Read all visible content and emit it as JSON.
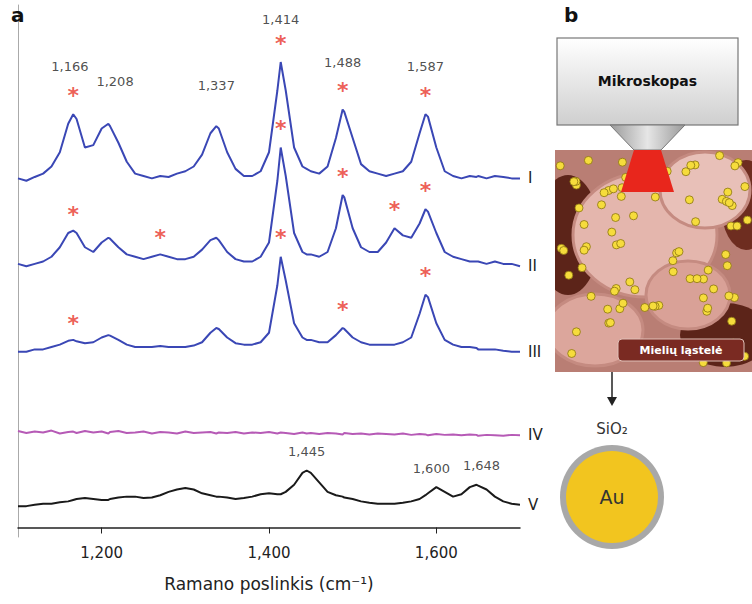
{
  "panel_labels": [
    "a",
    "b"
  ],
  "chart_data": {
    "type": "line",
    "x_label": "Ramano poslinkis (cm⁻¹)",
    "xlim": [
      1100,
      1700
    ],
    "xticks": [
      {
        "value": 1200,
        "label": "1,200"
      },
      {
        "value": 1400,
        "label": "1,400"
      },
      {
        "value": 1600,
        "label": "1,600"
      }
    ],
    "ylim": [
      -2,
      110
    ],
    "tick_labels": "x",
    "grid": false,
    "x": [
      1100,
      1110,
      1120,
      1130,
      1140,
      1150,
      1160,
      1166,
      1170,
      1180,
      1190,
      1200,
      1208,
      1210,
      1220,
      1230,
      1240,
      1250,
      1260,
      1270,
      1280,
      1290,
      1300,
      1310,
      1320,
      1330,
      1337,
      1340,
      1350,
      1360,
      1370,
      1380,
      1390,
      1400,
      1410,
      1414,
      1420,
      1430,
      1440,
      1445,
      1450,
      1460,
      1470,
      1480,
      1488,
      1490,
      1500,
      1510,
      1520,
      1530,
      1540,
      1550,
      1560,
      1570,
      1580,
      1587,
      1590,
      1600,
      1610,
      1620,
      1630,
      1640,
      1648,
      1650,
      1660,
      1670,
      1680,
      1690,
      1700
    ],
    "series": [
      {
        "name": "I",
        "color": "#3a47b5",
        "values": [
          73.5,
          73,
          73.8,
          74.5,
          76,
          79,
          85,
          87,
          86,
          80,
          80.5,
          84,
          85,
          84.5,
          81,
          77,
          74.5,
          74,
          73.5,
          74,
          73.8,
          74.5,
          75,
          76,
          78.5,
          83,
          84.5,
          84,
          79,
          75.5,
          74,
          74,
          75,
          79,
          92,
          98,
          92,
          80,
          76,
          75.5,
          75,
          74.5,
          76,
          82,
          88,
          87.5,
          82,
          76.5,
          75,
          74.5,
          74,
          74.5,
          75,
          77,
          83,
          87,
          86.5,
          80,
          75,
          74,
          73.5,
          74,
          73.8,
          74,
          73.5,
          74,
          73.8,
          73.5,
          73.5
        ],
        "stars": [
          [
            1166,
            91
          ],
          [
            1414,
            102
          ],
          [
            1488,
            92
          ],
          [
            1587,
            91
          ]
        ]
      },
      {
        "name": "II",
        "color": "#3a47b5",
        "values": [
          55.5,
          55,
          55.5,
          56,
          57,
          59,
          62,
          62.5,
          62,
          59,
          58,
          60,
          61,
          60.8,
          59,
          57.5,
          57,
          56.5,
          57,
          57.5,
          57,
          56.5,
          56.5,
          57,
          58.5,
          60.5,
          61,
          60.5,
          58,
          56.5,
          56,
          56,
          57,
          60,
          73,
          80,
          74,
          62,
          58,
          57.5,
          57.5,
          57,
          58,
          63,
          70,
          69.5,
          63,
          59,
          58,
          58,
          60,
          63,
          61.5,
          61,
          64,
          67,
          66.5,
          62,
          58,
          57,
          56.5,
          56,
          56,
          56,
          55.5,
          56,
          55.5,
          55.5,
          55
        ],
        "stars": [
          [
            1166,
            66
          ],
          [
            1270,
            61
          ],
          [
            1414,
            84
          ],
          [
            1488,
            74
          ],
          [
            1550,
            67
          ],
          [
            1587,
            71
          ]
        ]
      },
      {
        "name": "III",
        "color": "#3a47b5",
        "values": [
          37,
          37,
          37.5,
          37.5,
          38,
          38.5,
          39.3,
          39.5,
          39.2,
          38.8,
          39,
          40,
          40.5,
          40.4,
          39.5,
          38.5,
          38,
          38,
          38,
          38.2,
          38,
          38,
          38,
          38.3,
          39,
          41,
          42,
          41.8,
          40,
          38.8,
          38.5,
          38.5,
          39,
          41,
          51,
          57,
          52,
          43,
          40,
          39.5,
          39.5,
          39,
          39,
          40.5,
          42,
          41.8,
          40,
          39,
          38.5,
          38.5,
          38.5,
          38.5,
          39,
          40,
          45,
          49,
          48.5,
          43,
          39.5,
          38.5,
          38,
          38,
          37.8,
          37.5,
          37.5,
          37.5,
          37.2,
          37,
          37
        ],
        "stars": [
          [
            1166,
            43
          ],
          [
            1414,
            61
          ],
          [
            1488,
            46
          ],
          [
            1587,
            53
          ]
        ]
      },
      {
        "name": "IV",
        "color": "#b65ab6",
        "values": [
          20.3,
          19.9,
          20.2,
          20,
          20.4,
          19.8,
          20.1,
          20.2,
          19.9,
          20.3,
          20,
          20.2,
          19.8,
          20.1,
          20.3,
          19.9,
          20,
          20.2,
          19.8,
          20.1,
          20,
          19.8,
          20.2,
          19.9,
          20,
          20.1,
          19.8,
          20,
          19.9,
          20.1,
          19.8,
          20,
          19.9,
          20.1,
          19.8,
          20,
          19.9,
          19.7,
          20,
          19.8,
          19.9,
          19.7,
          19.9,
          19.8,
          19.6,
          19.9,
          19.7,
          19.8,
          19.6,
          19.8,
          19.7,
          19.6,
          19.8,
          19.5,
          19.7,
          19.6,
          19.4,
          19.7,
          19.5,
          19.6,
          19.4,
          19.6,
          19.5,
          19.3,
          19.5,
          19.4,
          19.3,
          19.5,
          19.4
        ],
        "stars": []
      },
      {
        "name": "V",
        "color": "#1a1a1a",
        "values": [
          4.5,
          4.5,
          4.8,
          5,
          5,
          5.3,
          5.5,
          5.8,
          6,
          6.2,
          6,
          5.8,
          5.8,
          6,
          6.3,
          6.5,
          6.5,
          6.2,
          6.3,
          6.8,
          7.5,
          8,
          8.3,
          8,
          7.2,
          6.8,
          6.5,
          6.5,
          6.3,
          6,
          6.2,
          6.5,
          7,
          7.2,
          7,
          7,
          7.5,
          9,
          11.5,
          12,
          11.5,
          9.5,
          7.5,
          6.8,
          6.5,
          6.3,
          6,
          5.5,
          5.2,
          5,
          5,
          5,
          5.2,
          5.5,
          6,
          6.8,
          7.2,
          8.5,
          7.5,
          6.5,
          7,
          8.5,
          9,
          8.8,
          8,
          6.5,
          5.5,
          5,
          4.8
        ],
        "stars": []
      }
    ],
    "star": {
      "text": "*",
      "color": "#e8352b"
    },
    "annotations": [
      {
        "x": 1162,
        "y": 97,
        "text": "1,166"
      },
      {
        "x": 1216,
        "y": 94,
        "text": "1,208"
      },
      {
        "x": 1337,
        "y": 93,
        "text": "1,337"
      },
      {
        "x": 1414,
        "y": 107,
        "text": "1,414"
      },
      {
        "x": 1488,
        "y": 98,
        "text": "1,488"
      },
      {
        "x": 1587,
        "y": 97,
        "text": "1,587"
      },
      {
        "x": 1445,
        "y": 16,
        "text": "1,445"
      },
      {
        "x": 1594,
        "y": 12.5,
        "text": "1,600"
      },
      {
        "x": 1654,
        "y": 13,
        "text": "1,648"
      }
    ]
  },
  "diagram": {
    "microscope": "Mikroskopas",
    "cell": "Mielių ląstelė",
    "shell": "SiO₂",
    "core": "Au"
  }
}
